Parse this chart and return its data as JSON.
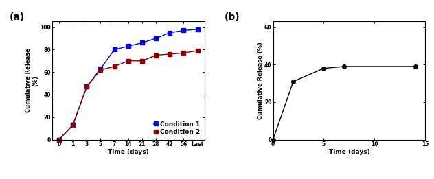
{
  "panel_a": {
    "label": "(a)",
    "x_tick_labels": [
      "0",
      "1",
      "3",
      "5",
      "7",
      "14",
      "21",
      "28",
      "42",
      "56",
      "Last"
    ],
    "cond1_y": [
      0,
      13,
      47,
      63,
      80,
      83,
      86,
      90,
      95,
      97,
      98
    ],
    "cond2_y": [
      0,
      13,
      47,
      62,
      65,
      70,
      70,
      75,
      76,
      77,
      79
    ],
    "color1": "#0000FF",
    "color2": "#8B0000",
    "ylabel_line1": "Cumulative Release",
    "ylabel_line2": "(%)",
    "xlabel": "Time (days)",
    "ylim": [
      0,
      105
    ],
    "yticks": [
      0,
      20,
      40,
      60,
      80,
      100
    ],
    "legend_labels": [
      "Condition 1",
      "Condition 2"
    ],
    "marker_size": 4,
    "linewidth": 1.0
  },
  "panel_b": {
    "label": "(b)",
    "x": [
      0,
      2,
      5,
      7,
      14
    ],
    "y": [
      0,
      31,
      38,
      39,
      39
    ],
    "color": "#000000",
    "ylabel": "Cumulative Release (%)",
    "xlabel": "Time (days)",
    "ylim": [
      0,
      63
    ],
    "yticks": [
      0,
      20,
      40,
      60
    ],
    "xlim": [
      0,
      15
    ],
    "xticks": [
      0,
      5,
      10,
      15
    ],
    "marker_size": 4,
    "linewidth": 1.0
  }
}
